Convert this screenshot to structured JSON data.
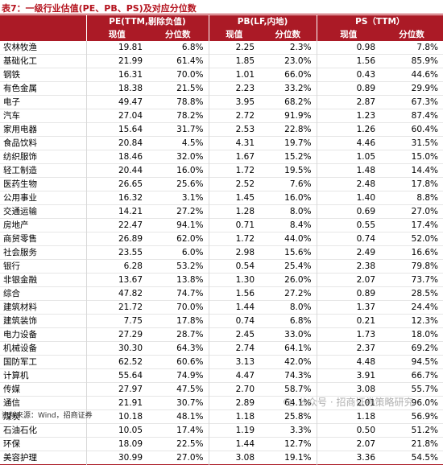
{
  "title": "表7：一级行业估值(PE、PB、PS)及对应分位数",
  "header": {
    "blank": "",
    "groups": [
      "PE(TTM,剔除负值)",
      "PB(LF,内地)",
      "PS（TTM）"
    ],
    "current_label": "现值",
    "percentile_label": "分位数"
  },
  "rows": [
    {
      "name": "农林牧渔",
      "pe": "19.81",
      "pe_pct": "6.8%",
      "pb": "2.25",
      "pb_pct": "2.3%",
      "ps": "0.98",
      "ps_pct": "7.8%"
    },
    {
      "name": "基础化工",
      "pe": "21.99",
      "pe_pct": "61.4%",
      "pb": "1.85",
      "pb_pct": "23.0%",
      "ps": "1.56",
      "ps_pct": "85.9%"
    },
    {
      "name": "钢铁",
      "pe": "16.31",
      "pe_pct": "70.0%",
      "pb": "1.01",
      "pb_pct": "66.0%",
      "ps": "0.43",
      "ps_pct": "44.6%"
    },
    {
      "name": "有色金属",
      "pe": "18.38",
      "pe_pct": "21.5%",
      "pb": "2.23",
      "pb_pct": "33.2%",
      "ps": "0.89",
      "ps_pct": "29.9%"
    },
    {
      "name": "电子",
      "pe": "49.47",
      "pe_pct": "78.8%",
      "pb": "3.95",
      "pb_pct": "68.2%",
      "ps": "2.87",
      "ps_pct": "67.3%"
    },
    {
      "name": "汽车",
      "pe": "27.04",
      "pe_pct": "78.2%",
      "pb": "2.72",
      "pb_pct": "91.9%",
      "ps": "1.23",
      "ps_pct": "87.4%"
    },
    {
      "name": "家用电器",
      "pe": "15.64",
      "pe_pct": "31.7%",
      "pb": "2.53",
      "pb_pct": "22.8%",
      "ps": "1.26",
      "ps_pct": "60.4%"
    },
    {
      "name": "食品饮料",
      "pe": "20.84",
      "pe_pct": "4.5%",
      "pb": "4.31",
      "pb_pct": "19.7%",
      "ps": "4.46",
      "ps_pct": "31.5%"
    },
    {
      "name": "纺织服饰",
      "pe": "18.46",
      "pe_pct": "32.0%",
      "pb": "1.67",
      "pb_pct": "15.2%",
      "ps": "1.05",
      "ps_pct": "15.0%"
    },
    {
      "name": "轻工制造",
      "pe": "20.44",
      "pe_pct": "16.0%",
      "pb": "1.72",
      "pb_pct": "19.5%",
      "ps": "1.48",
      "ps_pct": "14.4%"
    },
    {
      "name": "医药生物",
      "pe": "26.65",
      "pe_pct": "25.6%",
      "pb": "2.52",
      "pb_pct": "7.6%",
      "ps": "2.48",
      "ps_pct": "17.8%"
    },
    {
      "name": "公用事业",
      "pe": "16.32",
      "pe_pct": "3.1%",
      "pb": "1.45",
      "pb_pct": "16.0%",
      "ps": "1.40",
      "ps_pct": "8.8%"
    },
    {
      "name": "交通运输",
      "pe": "14.21",
      "pe_pct": "27.2%",
      "pb": "1.28",
      "pb_pct": "8.0%",
      "ps": "0.69",
      "ps_pct": "27.0%"
    },
    {
      "name": "房地产",
      "pe": "22.47",
      "pe_pct": "94.1%",
      "pb": "0.71",
      "pb_pct": "8.4%",
      "ps": "0.55",
      "ps_pct": "17.4%"
    },
    {
      "name": "商贸零售",
      "pe": "26.89",
      "pe_pct": "62.0%",
      "pb": "1.72",
      "pb_pct": "44.0%",
      "ps": "0.74",
      "ps_pct": "52.0%"
    },
    {
      "name": "社会服务",
      "pe": "23.55",
      "pe_pct": "6.0%",
      "pb": "2.98",
      "pb_pct": "15.6%",
      "ps": "2.49",
      "ps_pct": "16.6%"
    },
    {
      "name": "银行",
      "pe": "6.28",
      "pe_pct": "53.2%",
      "pb": "0.54",
      "pb_pct": "25.4%",
      "ps": "2.38",
      "ps_pct": "79.8%"
    },
    {
      "name": "非银金融",
      "pe": "13.67",
      "pe_pct": "13.8%",
      "pb": "1.30",
      "pb_pct": "26.0%",
      "ps": "2.07",
      "ps_pct": "73.7%"
    },
    {
      "name": "综合",
      "pe": "47.82",
      "pe_pct": "74.7%",
      "pb": "1.56",
      "pb_pct": "27.2%",
      "ps": "0.89",
      "ps_pct": "28.5%"
    },
    {
      "name": "建筑材料",
      "pe": "21.72",
      "pe_pct": "70.0%",
      "pb": "1.44",
      "pb_pct": "8.0%",
      "ps": "1.37",
      "ps_pct": "24.4%"
    },
    {
      "name": "建筑装饰",
      "pe": "7.75",
      "pe_pct": "17.8%",
      "pb": "0.74",
      "pb_pct": "6.8%",
      "ps": "0.21",
      "ps_pct": "12.3%"
    },
    {
      "name": "电力设备",
      "pe": "27.29",
      "pe_pct": "28.7%",
      "pb": "2.45",
      "pb_pct": "33.0%",
      "ps": "1.73",
      "ps_pct": "18.0%"
    },
    {
      "name": "机械设备",
      "pe": "30.30",
      "pe_pct": "64.3%",
      "pb": "2.74",
      "pb_pct": "64.1%",
      "ps": "2.37",
      "ps_pct": "69.2%"
    },
    {
      "name": "国防军工",
      "pe": "62.52",
      "pe_pct": "60.6%",
      "pb": "3.13",
      "pb_pct": "42.0%",
      "ps": "4.48",
      "ps_pct": "94.5%"
    },
    {
      "name": "计算机",
      "pe": "55.64",
      "pe_pct": "74.9%",
      "pb": "4.47",
      "pb_pct": "74.3%",
      "ps": "3.91",
      "ps_pct": "66.7%"
    },
    {
      "name": "传媒",
      "pe": "27.97",
      "pe_pct": "47.5%",
      "pb": "2.70",
      "pb_pct": "58.7%",
      "ps": "3.08",
      "ps_pct": "55.7%"
    },
    {
      "name": "通信",
      "pe": "21.91",
      "pe_pct": "30.7%",
      "pb": "2.89",
      "pb_pct": "64.1%",
      "ps": "2.01",
      "ps_pct": "96.0%"
    },
    {
      "name": "煤炭",
      "pe": "10.18",
      "pe_pct": "48.1%",
      "pb": "1.18",
      "pb_pct": "25.8%",
      "ps": "1.18",
      "ps_pct": "56.9%"
    },
    {
      "name": "石油石化",
      "pe": "10.05",
      "pe_pct": "17.4%",
      "pb": "1.19",
      "pb_pct": "3.3%",
      "ps": "0.50",
      "ps_pct": "51.2%"
    },
    {
      "name": "环保",
      "pe": "18.09",
      "pe_pct": "22.5%",
      "pb": "1.44",
      "pb_pct": "12.7%",
      "ps": "2.07",
      "ps_pct": "21.8%"
    },
    {
      "name": "美容护理",
      "pe": "30.99",
      "pe_pct": "27.0%",
      "pb": "3.08",
      "pb_pct": "19.1%",
      "ps": "3.36",
      "ps_pct": "54.5%"
    }
  ],
  "source": "资料来源：Wind，招商证券",
  "watermark": "公众号 · 招商证券策略研究",
  "colors": {
    "header_bg": "#ab1a26",
    "title": "#b4121d"
  }
}
